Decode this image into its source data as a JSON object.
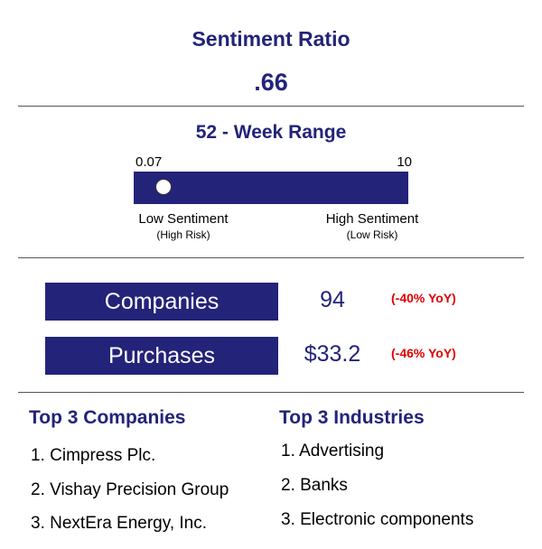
{
  "header": {
    "title": "Sentiment Ratio",
    "ratio_value": ".66"
  },
  "range": {
    "title": "52 - Week Range",
    "min_label": "0.07",
    "max_label": "10",
    "min": 0.07,
    "max": 10,
    "current": 0.66,
    "low_label": "Low Sentiment",
    "low_sub": "(High Risk)",
    "high_label": "High Sentiment",
    "high_sub": "(Low Risk)"
  },
  "stats": {
    "companies": {
      "label": "Companies",
      "value": "94",
      "yoy": "(-40% YoY)"
    },
    "purchases": {
      "label": "Purchases",
      "value": "$33.2",
      "yoy": "(-46% YoY)"
    }
  },
  "top_companies": {
    "title": "Top 3 Companies",
    "items": [
      "1.  Cimpress Plc.",
      "2.  Vishay Precision Group",
      "3.  NextEra Energy, Inc."
    ]
  },
  "top_industries": {
    "title": "Top 3 Industries",
    "items": [
      "1.  Advertising",
      "2.  Banks",
      "3.  Electronic components"
    ]
  },
  "colors": {
    "navy": "#23237a",
    "negative": "#e00000"
  }
}
